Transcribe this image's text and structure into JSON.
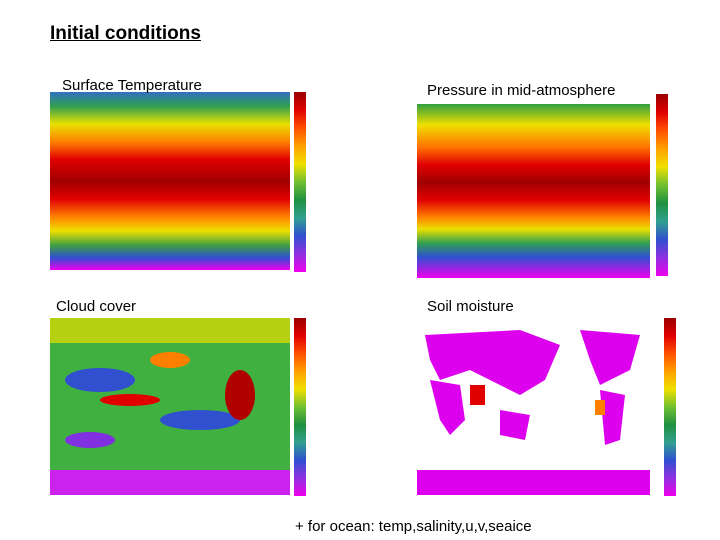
{
  "header": {
    "title": "Initial conditions"
  },
  "panels": [
    {
      "title": "Surface Temperature"
    },
    {
      "title": "Pressure in mid-atmosphere"
    },
    {
      "title": "Cloud cover"
    },
    {
      "title": "Soil moisture"
    }
  ],
  "footer": {
    "text": "+ for ocean:  temp,salinity,u,v,seaice"
  }
}
